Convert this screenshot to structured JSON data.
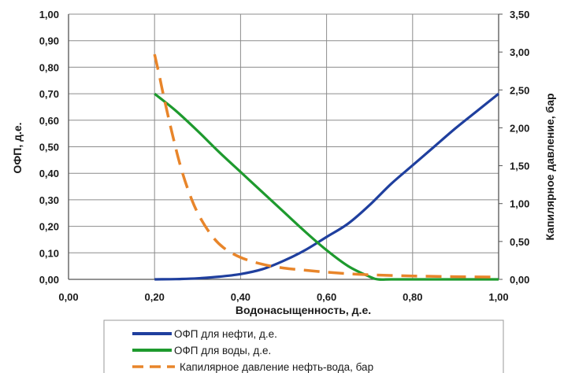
{
  "chart_data": {
    "type": "line",
    "title": "",
    "xlabel": "Водонасыщенность, д.е.",
    "ylabel_left": "ОФП, д.е.",
    "ylabel_right": "Капилярное давление, бар",
    "xlim": [
      0,
      1
    ],
    "ylim_left": [
      0,
      1
    ],
    "ylim_right": [
      0,
      3.5
    ],
    "x_ticks": [
      "0,00",
      "0,20",
      "0,40",
      "0,60",
      "0,80",
      "1,00"
    ],
    "y_left_ticks": [
      "0,00",
      "0,10",
      "0,20",
      "0,30",
      "0,40",
      "0,50",
      "0,60",
      "0,70",
      "0,80",
      "0,90",
      "1,00"
    ],
    "y_right_ticks": [
      "0,00",
      "0,50",
      "1,00",
      "1,50",
      "2,00",
      "2,50",
      "3,00",
      "3,50"
    ],
    "grid": true,
    "legend_position": "bottom",
    "series": [
      {
        "name": "ОФП для нефти, д.е.",
        "axis": "left",
        "color": "#1f3f9e",
        "dash": "solid",
        "x": [
          0.2,
          0.25,
          0.3,
          0.35,
          0.4,
          0.45,
          0.5,
          0.55,
          0.6,
          0.65,
          0.7,
          0.75,
          0.8,
          0.85,
          0.9,
          0.95,
          1.0
        ],
        "y": [
          0.0,
          0.001,
          0.004,
          0.01,
          0.02,
          0.038,
          0.07,
          0.11,
          0.16,
          0.21,
          0.28,
          0.36,
          0.43,
          0.5,
          0.57,
          0.635,
          0.7
        ]
      },
      {
        "name": "ОФП для воды, д.е.",
        "axis": "left",
        "color": "#1e9a2e",
        "dash": "solid",
        "x": [
          0.2,
          0.25,
          0.3,
          0.35,
          0.4,
          0.45,
          0.5,
          0.55,
          0.6,
          0.65,
          0.7,
          0.72,
          0.75,
          0.8,
          0.9,
          1.0
        ],
        "y": [
          0.7,
          0.635,
          0.56,
          0.48,
          0.405,
          0.33,
          0.255,
          0.18,
          0.11,
          0.05,
          0.01,
          0.0,
          0.0,
          0.0,
          0.0,
          0.0
        ]
      },
      {
        "name": "Капилярное давление нефть-вода, бар",
        "axis": "right",
        "color": "#e8852a",
        "dash": "dashed",
        "x": [
          0.2,
          0.21,
          0.22,
          0.24,
          0.26,
          0.28,
          0.3,
          0.33,
          0.36,
          0.4,
          0.45,
          0.5,
          0.55,
          0.6,
          0.65,
          0.7,
          0.8,
          0.9,
          1.0
        ],
        "y": [
          2.97,
          2.72,
          2.45,
          1.95,
          1.5,
          1.15,
          0.88,
          0.6,
          0.42,
          0.29,
          0.2,
          0.15,
          0.12,
          0.095,
          0.075,
          0.06,
          0.045,
          0.035,
          0.03
        ]
      }
    ]
  }
}
